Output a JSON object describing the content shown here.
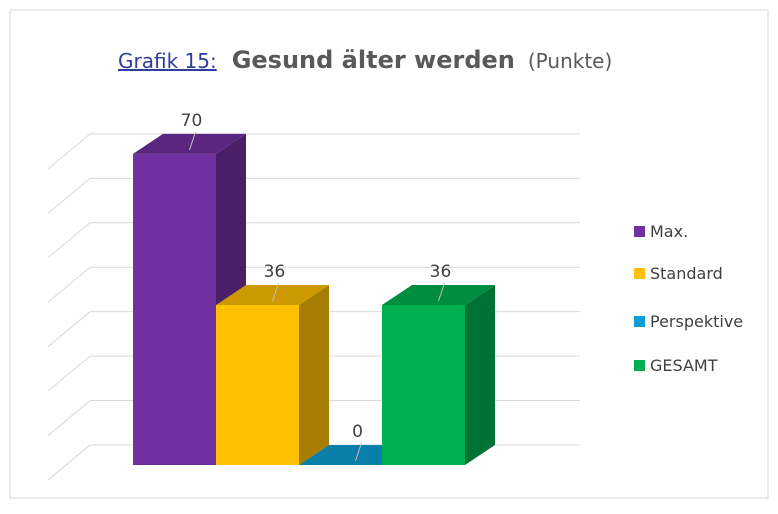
{
  "chart_data": {
    "type": "bar3d",
    "title_label": "Grafik 15:",
    "title": "Gesund älter werden",
    "title_unit": "(Punkte)",
    "series": [
      {
        "name": "Max.",
        "color": "#7030a0",
        "values": [
          70
        ]
      },
      {
        "name": "Standard",
        "color": "#ffc000",
        "values": [
          36
        ]
      },
      {
        "name": "Perspektive",
        "color": "#0f9ed5",
        "values": [
          0
        ]
      },
      {
        "name": "GESAMT",
        "color": "#00b050",
        "values": [
          36
        ]
      }
    ],
    "ylim": [
      0,
      80
    ],
    "yticks": [
      0,
      10,
      20,
      30,
      40,
      50,
      60,
      70
    ],
    "grid": true,
    "legend": "right"
  }
}
